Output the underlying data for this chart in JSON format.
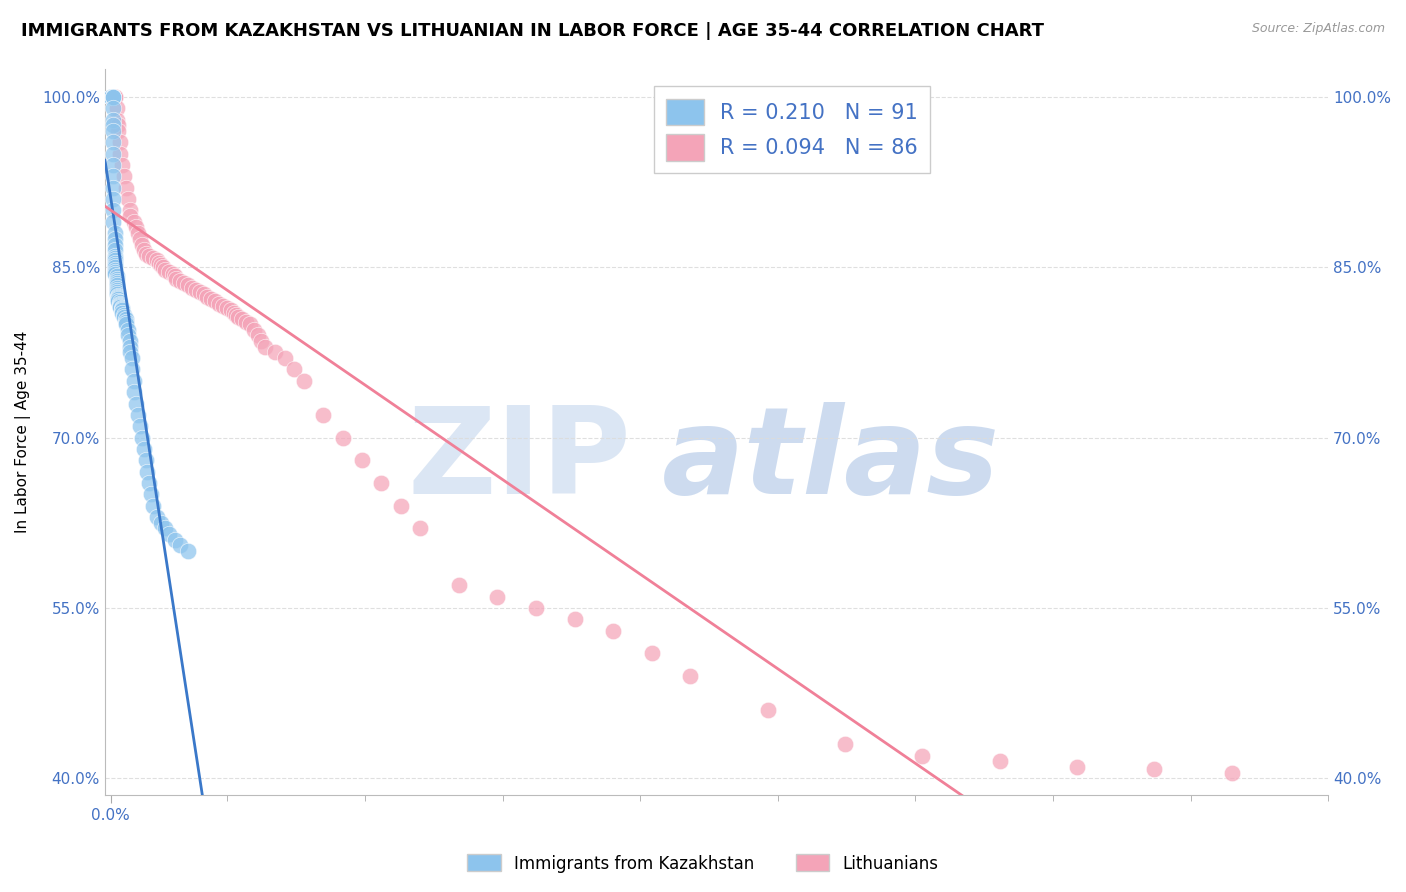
{
  "title": "IMMIGRANTS FROM KAZAKHSTAN VS LITHUANIAN IN LABOR FORCE | AGE 35-44 CORRELATION CHART",
  "source": "Source: ZipAtlas.com",
  "ylabel": "In Labor Force | Age 35-44",
  "legend_kazakhstan": "Immigrants from Kazakhstan",
  "legend_lithuanian": "Lithuanians",
  "legend_r_kaz": "R = 0.210",
  "legend_n_kaz": "N = 91",
  "legend_r_lit": "R = 0.094",
  "legend_n_lit": "N = 86",
  "xlim": [
    -3e-05,
    0.0063
  ],
  "ylim": [
    0.385,
    1.025
  ],
  "yticks": [
    0.4,
    0.55,
    0.7,
    0.85,
    1.0
  ],
  "ytick_labels": [
    "40.0%",
    "55.0%",
    "70.0%",
    "85.0%",
    "100.0%"
  ],
  "color_kaz": "#8DC4ED",
  "color_lit": "#F4A4B8",
  "color_kaz_line": "#3A78C9",
  "color_lit_line": "#F08098",
  "color_axis_text": "#4472C4",
  "watermark_color": "#D8E4F3",
  "background_color": "#FFFFFF",
  "grid_color": "#DCDCDC",
  "title_fontsize": 13,
  "label_fontsize": 11,
  "tick_fontsize": 11,
  "kaz_x": [
    0.0,
    0.0,
    0.0,
    0.0,
    0.0,
    0.0,
    0.0,
    0.0,
    1e-05,
    1e-05,
    1e-05,
    1e-05,
    1e-05,
    1e-05,
    1e-05,
    1e-05,
    1e-05,
    1e-05,
    1e-05,
    1e-05,
    1e-05,
    1e-05,
    1e-05,
    1e-05,
    2e-05,
    2e-05,
    2e-05,
    2e-05,
    2e-05,
    2e-05,
    2e-05,
    2e-05,
    2e-05,
    2e-05,
    2e-05,
    2e-05,
    2e-05,
    3e-05,
    3e-05,
    3e-05,
    3e-05,
    3e-05,
    3e-05,
    3e-05,
    3e-05,
    3e-05,
    4e-05,
    4e-05,
    4e-05,
    4e-05,
    4e-05,
    5e-05,
    5e-05,
    5e-05,
    5e-05,
    5e-05,
    6e-05,
    6e-05,
    6e-05,
    6e-05,
    7e-05,
    7e-05,
    8e-05,
    8e-05,
    8e-05,
    9e-05,
    9e-05,
    0.0001,
    0.0001,
    0.0001,
    0.00011,
    0.00011,
    0.00012,
    0.00012,
    0.00013,
    0.00014,
    0.00015,
    0.00016,
    0.00017,
    0.00018,
    0.00019,
    0.0002,
    0.00021,
    0.00022,
    0.00024,
    0.00026,
    0.00028,
    0.0003,
    0.00033,
    0.00036,
    0.0004
  ],
  "kaz_y": [
    1.0,
    1.0,
    1.0,
    1.0,
    1.0,
    1.0,
    1.0,
    1.0,
    1.0,
    1.0,
    1.0,
    1.0,
    0.99,
    0.98,
    0.975,
    0.97,
    0.96,
    0.95,
    0.94,
    0.93,
    0.92,
    0.91,
    0.9,
    0.89,
    0.88,
    0.875,
    0.87,
    0.865,
    0.86,
    0.858,
    0.856,
    0.854,
    0.852,
    0.85,
    0.848,
    0.846,
    0.844,
    0.842,
    0.84,
    0.838,
    0.836,
    0.834,
    0.832,
    0.83,
    0.828,
    0.826,
    0.825,
    0.824,
    0.823,
    0.822,
    0.82,
    0.819,
    0.818,
    0.817,
    0.816,
    0.815,
    0.814,
    0.813,
    0.812,
    0.81,
    0.808,
    0.806,
    0.804,
    0.802,
    0.8,
    0.795,
    0.79,
    0.785,
    0.78,
    0.775,
    0.77,
    0.76,
    0.75,
    0.74,
    0.73,
    0.72,
    0.71,
    0.7,
    0.69,
    0.68,
    0.67,
    0.66,
    0.65,
    0.64,
    0.63,
    0.625,
    0.62,
    0.615,
    0.61,
    0.605,
    0.6
  ],
  "lit_x": [
    0.0,
    0.0,
    1e-05,
    1e-05,
    1e-05,
    2e-05,
    2e-05,
    2e-05,
    3e-05,
    3e-05,
    4e-05,
    4e-05,
    5e-05,
    5e-05,
    6e-05,
    7e-05,
    8e-05,
    9e-05,
    0.0001,
    0.0001,
    0.00012,
    0.00013,
    0.00014,
    0.00015,
    0.00016,
    0.00017,
    0.00018,
    0.0002,
    0.00022,
    0.00024,
    0.00025,
    0.00026,
    0.00027,
    0.00028,
    0.0003,
    0.00032,
    0.00033,
    0.00034,
    0.00036,
    0.00038,
    0.0004,
    0.00042,
    0.00044,
    0.00046,
    0.00048,
    0.0005,
    0.00052,
    0.00054,
    0.00056,
    0.00058,
    0.0006,
    0.00062,
    0.00064,
    0.00065,
    0.00066,
    0.00068,
    0.0007,
    0.00072,
    0.00074,
    0.00076,
    0.00078,
    0.0008,
    0.00085,
    0.0009,
    0.00095,
    0.001,
    0.0011,
    0.0012,
    0.0013,
    0.0014,
    0.0015,
    0.0016,
    0.0018,
    0.002,
    0.0022,
    0.0024,
    0.0026,
    0.0028,
    0.003,
    0.0034,
    0.0038,
    0.0042,
    0.0046,
    0.005,
    0.0054,
    0.0058
  ],
  "lit_y": [
    1.0,
    1.0,
    1.0,
    1.0,
    1.0,
    1.0,
    1.0,
    1.0,
    0.99,
    0.98,
    0.975,
    0.97,
    0.96,
    0.95,
    0.94,
    0.93,
    0.92,
    0.91,
    0.9,
    0.895,
    0.89,
    0.885,
    0.88,
    0.875,
    0.87,
    0.865,
    0.862,
    0.86,
    0.858,
    0.856,
    0.854,
    0.852,
    0.85,
    0.848,
    0.846,
    0.844,
    0.842,
    0.84,
    0.838,
    0.836,
    0.834,
    0.832,
    0.83,
    0.828,
    0.826,
    0.824,
    0.822,
    0.82,
    0.818,
    0.816,
    0.814,
    0.812,
    0.81,
    0.808,
    0.806,
    0.804,
    0.802,
    0.8,
    0.795,
    0.79,
    0.785,
    0.78,
    0.775,
    0.77,
    0.76,
    0.75,
    0.72,
    0.7,
    0.68,
    0.66,
    0.64,
    0.62,
    0.57,
    0.56,
    0.55,
    0.54,
    0.53,
    0.51,
    0.49,
    0.46,
    0.43,
    0.42,
    0.415,
    0.41,
    0.408,
    0.405
  ]
}
